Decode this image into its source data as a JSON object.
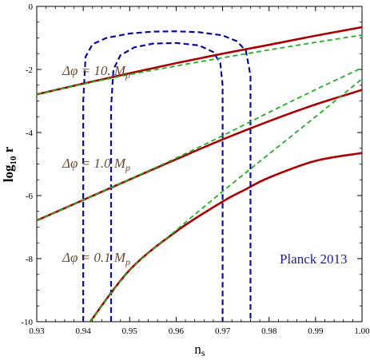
{
  "chart_data": {
    "type": "line",
    "xlabel_main": "n",
    "xlabel_sub": "s",
    "ylabel_main": "log",
    "ylabel_sub": "10",
    "ylabel_suffix": " r",
    "xlim": [
      0.93,
      1.0
    ],
    "ylim": [
      -10,
      0
    ],
    "x_ticks": [
      "0.93",
      "0.94",
      "0.95",
      "0.96",
      "0.97",
      "0.98",
      "0.99",
      "1.00"
    ],
    "y_ticks": [
      "0",
      "-2",
      "-4",
      "-6",
      "-8",
      "-10"
    ],
    "annotations": [
      {
        "text": "Δφ = 10. M",
        "sub": "p"
      },
      {
        "text": "Δφ = 1.0 M",
        "sub": "p"
      },
      {
        "text": "Δφ = 0.1 M",
        "sub": "p"
      },
      {
        "text": "Planck 2013"
      }
    ],
    "colors": {
      "red": "#aa0000",
      "green": "#20b020",
      "blue": "#0a0aa0"
    },
    "series": [
      {
        "style": "red-solid",
        "x": [
          0.93,
          0.94,
          0.95,
          0.96,
          0.97,
          0.98,
          0.99,
          1.0
        ],
        "y": [
          -2.79,
          -2.45,
          -2.12,
          -1.8,
          -1.5,
          -1.22,
          -0.93,
          -0.66
        ]
      },
      {
        "style": "green-dashed",
        "x": [
          0.93,
          0.94,
          0.95,
          0.96,
          0.97,
          0.98,
          0.99,
          1.0
        ],
        "y": [
          -2.79,
          -2.46,
          -2.16,
          -1.89,
          -1.63,
          -1.38,
          -1.14,
          -0.91
        ]
      },
      {
        "style": "red-solid",
        "x": [
          0.93,
          0.94,
          0.95,
          0.96,
          0.97,
          0.98,
          0.99,
          1.0
        ],
        "y": [
          -6.79,
          -6.14,
          -5.49,
          -4.85,
          -4.22,
          -3.64,
          -3.11,
          -2.65
        ]
      },
      {
        "style": "green-dashed",
        "x": [
          0.93,
          0.94,
          0.95,
          0.96,
          0.97,
          0.98,
          0.99,
          1.0
        ],
        "y": [
          -6.79,
          -6.14,
          -5.48,
          -4.81,
          -4.1,
          -3.36,
          -2.64,
          -1.95
        ]
      },
      {
        "style": "red-solid",
        "x": [
          0.9415,
          0.95,
          0.96,
          0.97,
          0.975,
          0.98,
          0.99,
          1.0
        ],
        "y": [
          -10.0,
          -8.36,
          -7.14,
          -6.19,
          -5.8,
          -5.43,
          -4.9,
          -4.65
        ]
      },
      {
        "style": "green-dashed",
        "x": [
          0.9415,
          0.95,
          0.96,
          0.97,
          0.98,
          0.99,
          1.0
        ],
        "y": [
          -10.0,
          -8.38,
          -7.1,
          -5.87,
          -4.68,
          -3.5,
          -2.3
        ]
      },
      {
        "style": "blue-dashed",
        "x": [
          0.94,
          0.94,
          0.9405,
          0.942,
          0.945,
          0.95,
          0.955,
          0.96,
          0.965,
          0.97,
          0.973,
          0.975,
          0.976,
          0.976
        ],
        "y": [
          -10.0,
          -3.0,
          -1.6,
          -1.2,
          -1.0,
          -0.86,
          -0.8,
          -0.79,
          -0.82,
          -0.92,
          -1.1,
          -1.4,
          -2.2,
          -10.0
        ]
      },
      {
        "style": "blue-dashed",
        "x": [
          0.946,
          0.946,
          0.9465,
          0.948,
          0.951,
          0.955,
          0.96,
          0.965,
          0.968,
          0.9695,
          0.97,
          0.97
        ],
        "y": [
          -10.0,
          -3.2,
          -2.0,
          -1.55,
          -1.3,
          -1.18,
          -1.16,
          -1.24,
          -1.45,
          -1.8,
          -2.5,
          -10.0
        ]
      }
    ]
  }
}
